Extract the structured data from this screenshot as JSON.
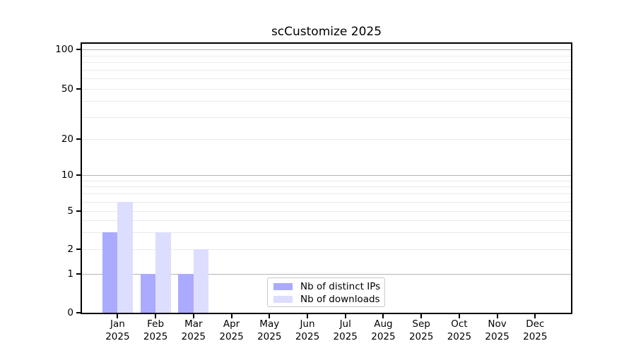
{
  "title": "scCustomize 2025",
  "legend": {
    "items": [
      {
        "label": "Nb of distinct IPs",
        "color": "#aaaaff"
      },
      {
        "label": "Nb of downloads",
        "color": "#ddddff"
      }
    ]
  },
  "axes": {
    "y_tick_labels": [
      "0",
      "1",
      "2",
      "5",
      "10",
      "20",
      "50",
      "100"
    ],
    "x_tick_year": "2025"
  },
  "chart_data": {
    "type": "bar",
    "title": "scCustomize 2025",
    "categories": [
      "Jan 2025",
      "Feb 2025",
      "Mar 2025",
      "Apr 2025",
      "May 2025",
      "Jun 2025",
      "Jul 2025",
      "Aug 2025",
      "Sep 2025",
      "Oct 2025",
      "Nov 2025",
      "Dec 2025"
    ],
    "series": [
      {
        "name": "Nb of distinct IPs",
        "color": "#aaaaff",
        "values": [
          3,
          1,
          1,
          0,
          0,
          0,
          0,
          0,
          0,
          0,
          0,
          0
        ]
      },
      {
        "name": "Nb of downloads",
        "color": "#ddddff",
        "values": [
          6,
          3,
          2,
          0,
          0,
          0,
          0,
          0,
          0,
          0,
          0,
          0
        ]
      }
    ],
    "xlabel": "",
    "ylabel": "",
    "yscale": "log-like",
    "yticks": [
      0,
      1,
      2,
      5,
      10,
      20,
      50,
      100
    ],
    "minor_gridlines": [
      2,
      3,
      4,
      5,
      6,
      7,
      8,
      9,
      20,
      30,
      40,
      50,
      60,
      70,
      80,
      90
    ],
    "major_gridlines": [
      1,
      10,
      100
    ],
    "ylim": [
      0,
      115
    ],
    "grid": true,
    "legend_position": "lower center"
  },
  "colors": {
    "bar_distinct_ips": "#aaaaff",
    "bar_downloads": "#ddddff",
    "major_grid": "#b4b4b4",
    "minor_grid": "#e9e9e9",
    "spine": "#000000",
    "background": "#ffffff"
  }
}
